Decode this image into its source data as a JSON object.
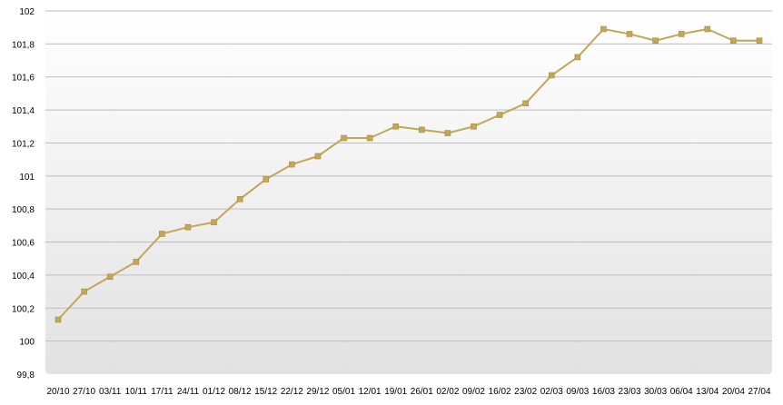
{
  "chart_data": {
    "type": "line",
    "title": "",
    "xlabel": "",
    "ylabel": "",
    "ylim": [
      99.8,
      102
    ],
    "yticks": [
      99.8,
      100,
      100.2,
      100.4,
      100.6,
      100.8,
      101,
      101.2,
      101.4,
      101.6,
      101.8,
      102
    ],
    "ytick_labels": [
      "99,8",
      "100",
      "100,2",
      "100,4",
      "100,6",
      "100,8",
      "101",
      "101,2",
      "101,4",
      "101,6",
      "101,8",
      "102"
    ],
    "categories": [
      "20/10",
      "27/10",
      "03/11",
      "10/11",
      "17/11",
      "24/11",
      "01/12",
      "08/12",
      "15/12",
      "22/12",
      "29/12",
      "05/01",
      "12/01",
      "19/01",
      "26/01",
      "02/02",
      "09/02",
      "16/02",
      "23/02",
      "02/03",
      "09/03",
      "16/03",
      "23/03",
      "30/03",
      "06/04",
      "13/04",
      "20/04",
      "27/04"
    ],
    "series": [
      {
        "name": "",
        "color": "#c2a756",
        "values": [
          100.13,
          100.3,
          100.39,
          100.48,
          100.65,
          100.69,
          100.72,
          100.86,
          100.98,
          101.07,
          101.12,
          101.23,
          101.23,
          101.3,
          101.28,
          101.26,
          101.3,
          101.37,
          101.44,
          101.61,
          101.72,
          101.89,
          101.86,
          101.82,
          101.86,
          101.89,
          101.82,
          101.82
        ]
      }
    ],
    "grid": true,
    "legend": "none"
  }
}
